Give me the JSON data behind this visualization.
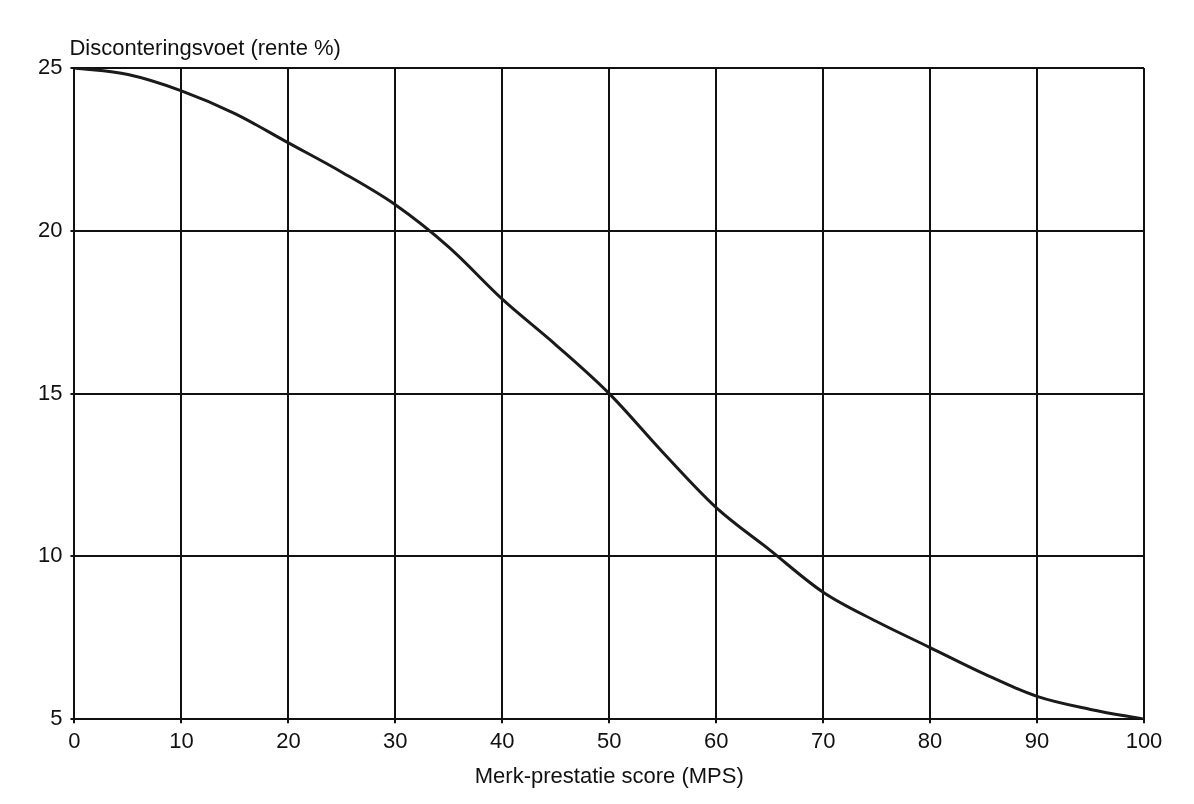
{
  "chart_data": {
    "type": "line",
    "ylabel": "Disconteringsvoet (rente %)",
    "xlabel": "Merk-prestatie score (MPS)",
    "x": [
      0,
      5,
      10,
      15,
      20,
      25,
      30,
      35,
      40,
      45,
      50,
      55,
      60,
      65,
      70,
      75,
      80,
      85,
      90,
      95,
      100
    ],
    "series": [
      {
        "color": "#1a1a1a",
        "values": [
          25,
          24.8,
          24.3,
          23.6,
          22.7,
          21.8,
          20.8,
          19.5,
          17.9,
          16.5,
          15,
          13.2,
          11.5,
          10.2,
          8.9,
          8,
          7.2,
          6.4,
          5.7,
          5.3,
          5
        ]
      }
    ],
    "xlim": [
      0,
      100
    ],
    "xticks": [
      0,
      10,
      20,
      30,
      40,
      50,
      60,
      70,
      80,
      90,
      100
    ],
    "ylim": [
      5,
      25
    ],
    "yticks": [
      5,
      10,
      15,
      20,
      25
    ],
    "grid": true,
    "legend": false,
    "marker": "none",
    "line_style": "solid"
  }
}
